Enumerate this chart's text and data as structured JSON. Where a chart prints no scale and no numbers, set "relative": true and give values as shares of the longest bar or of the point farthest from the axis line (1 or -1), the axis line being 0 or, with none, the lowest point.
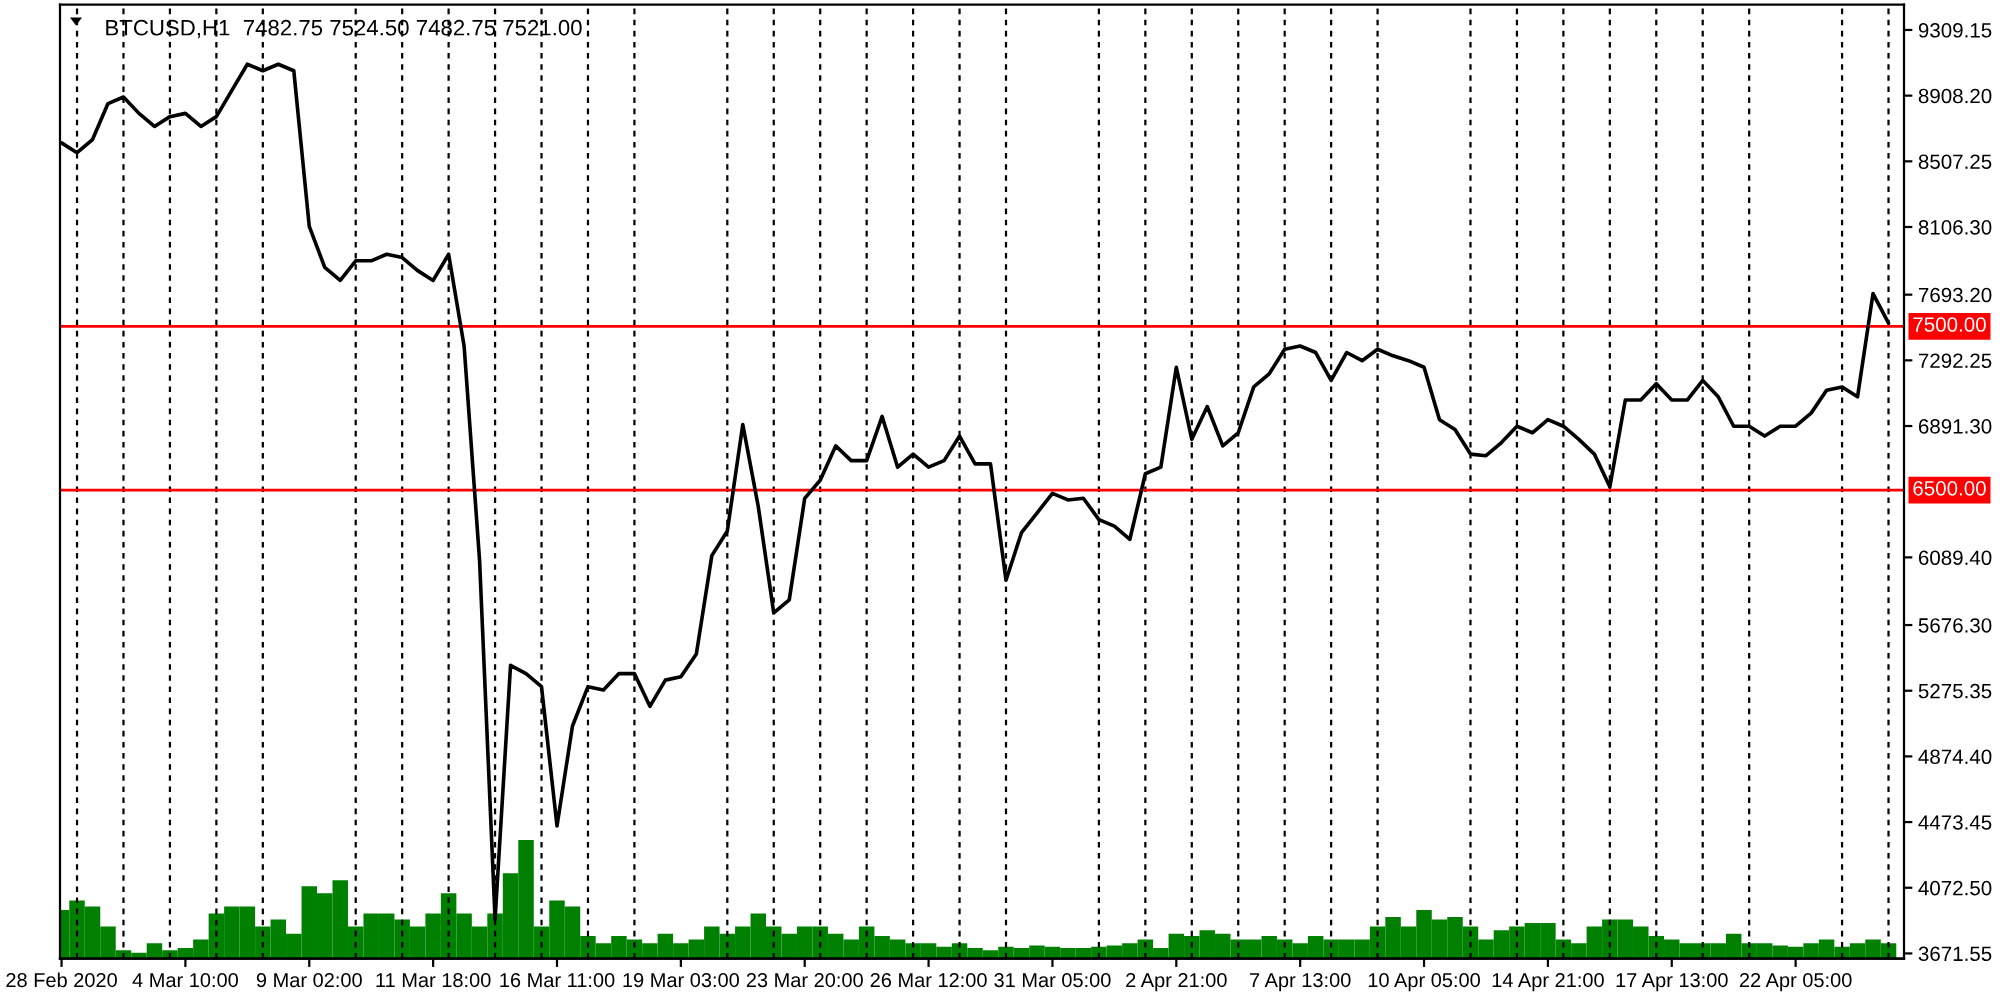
{
  "chart_data": [
    {
      "type": "line",
      "title": "BTCUSD,H1  7482.75 7524.50 7482.75 7521.00",
      "color": "#000000",
      "grid": "x",
      "categories": [
        "28 Feb 2020",
        null,
        null,
        null,
        null,
        null,
        null,
        null,
        "4 Mar 10:00",
        null,
        null,
        null,
        null,
        null,
        null,
        null,
        "9 Mar 02:00",
        null,
        null,
        null,
        null,
        null,
        null,
        null,
        "11 Mar 18:00",
        null,
        null,
        null,
        null,
        null,
        null,
        null,
        "16 Mar 11:00",
        null,
        null,
        null,
        null,
        null,
        null,
        null,
        "19 Mar 03:00",
        null,
        null,
        null,
        null,
        null,
        null,
        null,
        "23 Mar 20:00",
        null,
        null,
        null,
        null,
        null,
        null,
        null,
        "26 Mar 12:00",
        null,
        null,
        null,
        null,
        null,
        null,
        null,
        "31 Mar 05:00",
        null,
        null,
        null,
        null,
        null,
        null,
        null,
        "2 Apr 21:00",
        null,
        null,
        null,
        null,
        null,
        null,
        null,
        "7 Apr 13:00",
        null,
        null,
        null,
        null,
        null,
        null,
        null,
        "10 Apr 05:00",
        null,
        null,
        null,
        null,
        null,
        null,
        null,
        "14 Apr 21:00",
        null,
        null,
        null,
        null,
        null,
        null,
        null,
        "17 Apr 13:00",
        null,
        null,
        null,
        null,
        null,
        null,
        null,
        "22 Apr 05:00",
        null,
        null,
        null,
        null,
        null,
        null
      ],
      "values": [
        8620,
        8560,
        8640,
        8860,
        8900,
        8800,
        8720,
        8780,
        8800,
        8720,
        8780,
        8940,
        9100,
        9060,
        9100,
        9060,
        8110,
        7860,
        7780,
        7900,
        7900,
        7940,
        7920,
        7840,
        7780,
        7940,
        7380,
        6070,
        3880,
        5430,
        5380,
        5300,
        4450,
        5060,
        5300,
        5280,
        5380,
        5380,
        5180,
        5340,
        5360,
        5500,
        6100,
        6250,
        6900,
        6400,
        5750,
        5830,
        6450,
        6560,
        6770,
        6680,
        6680,
        6950,
        6640,
        6720,
        6640,
        6680,
        6830,
        6660,
        6660,
        5950,
        6240,
        6360,
        6480,
        6440,
        6450,
        6320,
        6280,
        6200,
        6600,
        6640,
        7250,
        6810,
        7010,
        6770,
        6850,
        7130,
        7210,
        7360,
        7380,
        7340,
        7170,
        7340,
        7290,
        7360,
        7320,
        7290,
        7250,
        6930,
        6870,
        6720,
        6710,
        6790,
        6890,
        6850,
        6930,
        6890,
        6810,
        6720,
        6520,
        7050,
        7050,
        7150,
        7050,
        7050,
        7170,
        7070,
        6890,
        6890,
        6830,
        6890,
        6890,
        6970,
        7110,
        7130,
        7070,
        7700,
        7520
      ],
      "ylim": [
        3640,
        9464
      ],
      "yticks": [
        9309.15,
        {
          "value": 8908.2,
          "label": "8908.20"
        },
        8507.25,
        {
          "value": 8106.3,
          "label": "8106.30"
        },
        {
          "value": 7693.2,
          "label": "7693.20"
        },
        7292.25,
        {
          "value": 6891.3,
          "label": "6891.30"
        },
        {
          "value": 6089.4,
          "label": "6089.40"
        },
        {
          "value": 5676.3,
          "label": "5676.30"
        },
        5275.35,
        {
          "value": 4874.4,
          "label": "4874.40"
        },
        4473.45,
        {
          "value": 4072.5,
          "label": "4072.50"
        },
        3671.55
      ],
      "ref_lines": [
        {
          "axis": "y",
          "value": 7500,
          "label": "7500.00",
          "color": "#ff0000"
        },
        {
          "axis": "y",
          "value": 6500,
          "label": "6500.00",
          "color": "#ff0000"
        }
      ]
    },
    {
      "type": "bar",
      "relative": true,
      "color": "#008000",
      "categories": [
        null,
        null,
        null,
        null,
        null,
        null,
        null,
        null,
        null,
        null,
        null,
        null,
        null,
        null,
        null,
        null,
        null,
        null,
        null,
        null,
        null,
        null,
        null,
        null,
        null,
        null,
        null,
        null,
        null,
        null,
        null,
        null,
        null,
        null,
        null,
        null,
        null,
        null,
        null,
        null,
        null,
        null,
        null,
        null,
        null,
        null,
        null,
        null,
        null,
        null,
        null,
        null,
        null,
        null,
        null,
        null,
        null,
        null,
        null,
        null,
        null,
        null,
        null,
        null,
        null,
        null,
        null,
        null,
        null,
        null,
        null,
        null,
        null,
        null,
        null,
        null,
        null,
        null,
        null,
        null,
        null,
        null,
        null,
        null,
        null,
        null,
        null,
        null,
        null,
        null,
        null,
        null,
        null,
        null,
        null,
        null,
        null,
        null,
        null,
        null,
        null,
        null,
        null,
        null,
        null,
        null,
        null,
        null,
        null,
        null,
        null,
        null,
        null,
        null,
        null,
        null,
        null,
        null,
        null
      ],
      "values": [
        0.41,
        0.49,
        0.44,
        0.27,
        0.07,
        0.05,
        0.13,
        0.07,
        0.09,
        0.16,
        0.38,
        0.44,
        0.44,
        0.27,
        0.33,
        0.21,
        0.61,
        0.55,
        0.66,
        0.27,
        0.38,
        0.38,
        0.33,
        0.27,
        0.38,
        0.55,
        0.38,
        0.27,
        0.38,
        0.72,
        1,
        0.27,
        0.49,
        0.44,
        0.19,
        0.13,
        0.19,
        0.16,
        0.13,
        0.21,
        0.13,
        0.16,
        0.27,
        0.21,
        0.27,
        0.38,
        0.27,
        0.21,
        0.27,
        0.27,
        0.21,
        0.16,
        0.27,
        0.19,
        0.16,
        0.13,
        0.13,
        0.1,
        0.13,
        0.09,
        0.07,
        0.1,
        0.09,
        0.11,
        0.1,
        0.09,
        0.09,
        0.1,
        0.11,
        0.13,
        0.16,
        0.09,
        0.21,
        0.19,
        0.24,
        0.21,
        0.16,
        0.16,
        0.19,
        0.16,
        0.13,
        0.19,
        0.16,
        0.16,
        0.16,
        0.27,
        0.35,
        0.27,
        0.41,
        0.33,
        0.35,
        0.27,
        0.16,
        0.24,
        0.27,
        0.3,
        0.3,
        0.16,
        0.13,
        0.27,
        0.33,
        0.33,
        0.27,
        0.19,
        0.16,
        0.13,
        0.13,
        0.13,
        0.21,
        0.13,
        0.13,
        0.11,
        0.1,
        0.13,
        0.16,
        0.1,
        0.13,
        0.16,
        0.13
      ]
    }
  ]
}
